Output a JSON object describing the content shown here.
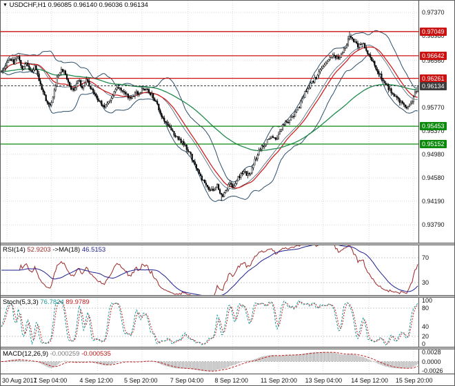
{
  "header": {
    "symbol_timeframe": "USDCHF,H1",
    "open": "0.96085",
    "high": "0.96140",
    "low": "0.96036",
    "close": "0.96134"
  },
  "colors": {
    "resistance": "#cc1111",
    "support": "#0c8a0c",
    "current_price": "#3c3c3c",
    "bollinger": "#2a4d69",
    "ma_fast": "#d02020",
    "ma_slow": "#1e8a4a",
    "candle_up": "#ffffff",
    "candle_down": "#000000",
    "candle_outline": "#000000",
    "grid": "#d9d9d9",
    "panel_level": "#c8c8c8",
    "rsi": "#9c2626",
    "rsi_ma": "#1c1c8f",
    "stoch_k": "#1d9696",
    "stoch_d": "#c01818",
    "macd_hist": "#9a9a9a",
    "macd_signal": "#c01818"
  },
  "chart_data": {
    "type": "candlestick",
    "symbol": "USDCHF",
    "timeframe": "H1",
    "bars": 300,
    "price_axis": {
      "min": 0.9349,
      "max": 0.9757,
      "ticks": [
        0.9737,
        0.9698,
        0.9656,
        0.9577,
        0.9537,
        0.9498,
        0.9458,
        0.9419,
        0.9379
      ]
    },
    "levels": [
      {
        "price": 0.97049,
        "type": "resistance"
      },
      {
        "price": 0.96642,
        "type": "resistance"
      },
      {
        "price": 0.96261,
        "type": "resistance"
      },
      {
        "price": 0.96134,
        "type": "current-price"
      },
      {
        "price": 0.95453,
        "type": "support"
      },
      {
        "price": 0.95152,
        "type": "support"
      }
    ],
    "time_labels": [
      "30 Aug 2017",
      "1 Sep 04:00",
      "4 Sep 12:00",
      "5 Sep 20:00",
      "7 Sep 04:00",
      "8 Sep 12:00",
      "11 Sep 20:00",
      "13 Sep 04:00",
      "14 Sep 12:00",
      "15 Sep 20:00"
    ],
    "time_label_bars": [
      4,
      36,
      69,
      101,
      134,
      166,
      199,
      231,
      264,
      296
    ],
    "close_path": [
      [
        0,
        0.9637
      ],
      [
        3,
        0.965
      ],
      [
        6,
        0.966
      ],
      [
        9,
        0.9652
      ],
      [
        12,
        0.9661
      ],
      [
        15,
        0.9644
      ],
      [
        18,
        0.9652
      ],
      [
        21,
        0.9638
      ],
      [
        24,
        0.9645
      ],
      [
        27,
        0.9625
      ],
      [
        30,
        0.9601
      ],
      [
        33,
        0.9586
      ],
      [
        36,
        0.9582
      ],
      [
        38,
        0.9605
      ],
      [
        40,
        0.9626
      ],
      [
        43,
        0.9641
      ],
      [
        46,
        0.9634
      ],
      [
        49,
        0.9612
      ],
      [
        52,
        0.9605
      ],
      [
        55,
        0.9624
      ],
      [
        58,
        0.961
      ],
      [
        61,
        0.9624
      ],
      [
        64,
        0.9609
      ],
      [
        67,
        0.9598
      ],
      [
        70,
        0.959
      ],
      [
        73,
        0.9577
      ],
      [
        76,
        0.9582
      ],
      [
        80,
        0.96
      ],
      [
        84,
        0.9611
      ],
      [
        88,
        0.9605
      ],
      [
        92,
        0.9593
      ],
      [
        96,
        0.96
      ],
      [
        100,
        0.9604
      ],
      [
        104,
        0.961
      ],
      [
        108,
        0.9598
      ],
      [
        112,
        0.9581
      ],
      [
        116,
        0.9557
      ],
      [
        120,
        0.9545
      ],
      [
        124,
        0.9533
      ],
      [
        128,
        0.9521
      ],
      [
        132,
        0.9512
      ],
      [
        136,
        0.9496
      ],
      [
        140,
        0.9474
      ],
      [
        144,
        0.9457
      ],
      [
        148,
        0.9442
      ],
      [
        152,
        0.9438
      ],
      [
        155,
        0.9447
      ],
      [
        158,
        0.9427
      ],
      [
        161,
        0.9434
      ],
      [
        164,
        0.9452
      ],
      [
        167,
        0.9442
      ],
      [
        170,
        0.946
      ],
      [
        174,
        0.9467
      ],
      [
        178,
        0.9462
      ],
      [
        182,
        0.9488
      ],
      [
        186,
        0.9508
      ],
      [
        190,
        0.9518
      ],
      [
        194,
        0.9527
      ],
      [
        198,
        0.9522
      ],
      [
        202,
        0.9548
      ],
      [
        206,
        0.9553
      ],
      [
        210,
        0.9563
      ],
      [
        214,
        0.9579
      ],
      [
        218,
        0.9602
      ],
      [
        222,
        0.9617
      ],
      [
        226,
        0.9627
      ],
      [
        230,
        0.9644
      ],
      [
        234,
        0.9655
      ],
      [
        238,
        0.9667
      ],
      [
        242,
        0.9658
      ],
      [
        246,
        0.9674
      ],
      [
        250,
        0.9695
      ],
      [
        253,
        0.969
      ],
      [
        256,
        0.9681
      ],
      [
        259,
        0.9687
      ],
      [
        262,
        0.9672
      ],
      [
        265,
        0.966
      ],
      [
        268,
        0.9648
      ],
      [
        271,
        0.9636
      ],
      [
        274,
        0.9624
      ],
      [
        277,
        0.9613
      ],
      [
        280,
        0.9603
      ],
      [
        284,
        0.9592
      ],
      [
        288,
        0.9583
      ],
      [
        292,
        0.9577
      ],
      [
        295,
        0.9588
      ],
      [
        297,
        0.96
      ],
      [
        299,
        0.9613
      ]
    ],
    "extremes": {
      "high_bar": 250,
      "high_price": 0.97049,
      "low_bar": 158,
      "low_price": 0.9419,
      "last_close": 0.96134
    },
    "overlays": {
      "bollinger_period": 20,
      "bollinger_dev": 2,
      "ma_fast_period": 24,
      "ma_slow_period": 100
    },
    "indicators": {
      "rsi": {
        "name": "RSI(14)",
        "value": "52.9203",
        "ma_name": "->MA(18)",
        "ma_value": "46.5153",
        "period": 14,
        "ma_period": 18,
        "levels": [
          70,
          30
        ],
        "axis_labels": [
          70,
          30
        ],
        "display_range": [
          10,
          90
        ]
      },
      "stoch": {
        "name": "Stoch(5,3,3)",
        "value_k": "76.7824",
        "value_d": "89.9789",
        "k_period": 5,
        "d_period": 3,
        "slowing": 3,
        "levels": [
          80,
          20
        ],
        "axis_labels": [
          100,
          80,
          40,
          20,
          0
        ],
        "display_range": [
          -2,
          102
        ]
      },
      "macd": {
        "name": "MACD(12,26,9)",
        "value": "-0.000259",
        "signal_value": "-0.000535",
        "fast": 12,
        "slow": 26,
        "signal": 9,
        "axis_labels": [
          "0.0028",
          "0.0000",
          "-0.0026"
        ],
        "axis_values": [
          0.0028,
          0,
          -0.0026
        ],
        "display_range": [
          -0.0031,
          0.0031
        ]
      }
    }
  }
}
